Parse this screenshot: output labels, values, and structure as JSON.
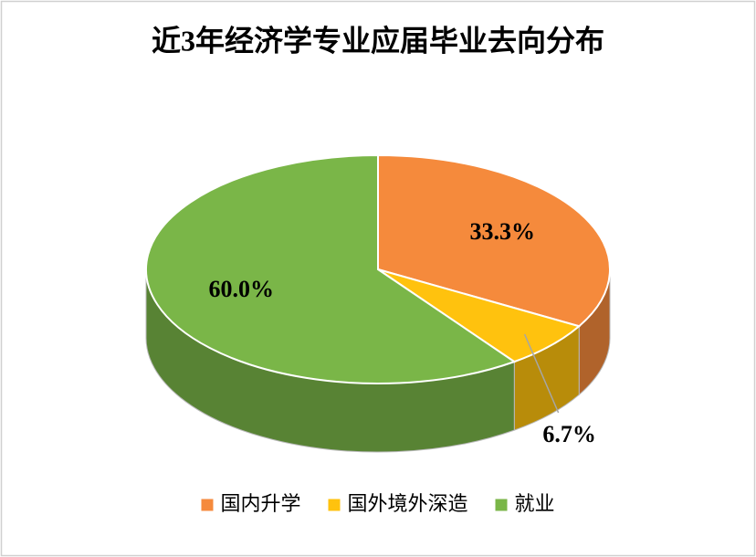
{
  "chart_data": {
    "type": "pie3d",
    "title": "近3年经济学专业应届毕业去向分布",
    "categories": [
      "国内升学",
      "国外境外深造",
      "就业"
    ],
    "values": [
      33.3,
      6.7,
      60.0
    ],
    "value_labels": [
      "33.3%",
      "6.7%",
      "60.0%"
    ],
    "colors": [
      "#f58a3c",
      "#ffc20e",
      "#7ab648"
    ],
    "legend": "bottom"
  }
}
